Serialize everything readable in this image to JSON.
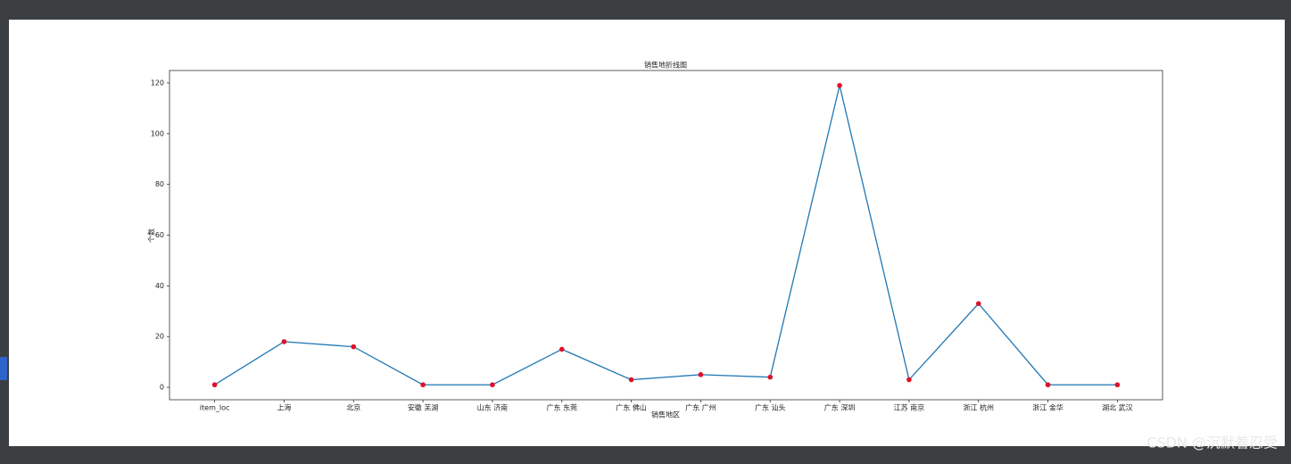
{
  "chart_data": {
    "type": "line",
    "title": "销售地折线图",
    "xlabel": "销售地区",
    "ylabel": "个数",
    "categories": [
      "item_loc",
      "上海",
      "北京",
      "安徽 芜湖",
      "山东 济南",
      "广东 东莞",
      "广东 佛山",
      "广东 广州",
      "广东 汕头",
      "广东 深圳",
      "江苏 南京",
      "浙江 杭州",
      "浙江 金华",
      "湖北 武汉"
    ],
    "series": [
      {
        "color": "#1f77b4",
        "marker_color": "#e0102a",
        "values": [
          1,
          18,
          16,
          1,
          1,
          15,
          3,
          5,
          4,
          119,
          3,
          33,
          1,
          1
        ]
      }
    ],
    "ylim": [
      -4.9,
      124.9
    ],
    "yticks": [
      0,
      20,
      40,
      60,
      80,
      100,
      120
    ],
    "grid": false
  },
  "watermark": "CSDN @沉默着忍受"
}
